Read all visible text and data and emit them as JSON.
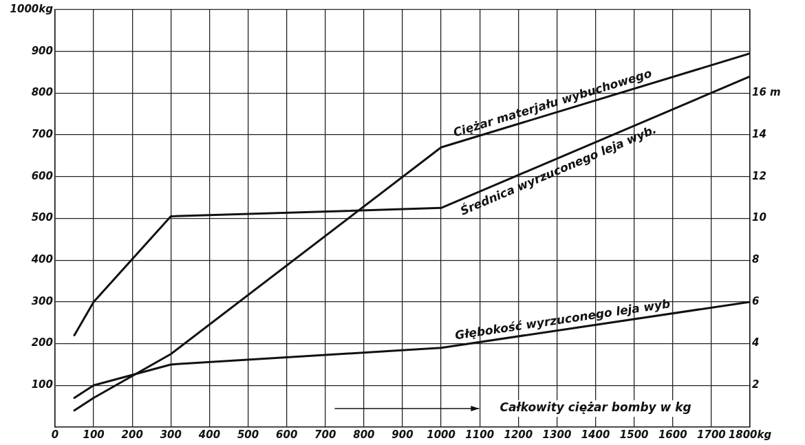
{
  "chart_data": {
    "type": "line",
    "xlabel": "Całkowity ciężar bomby w kg",
    "x": [
      50,
      100,
      300,
      1000,
      1800
    ],
    "series": [
      {
        "name": "Ciężar materjału wybuchowego",
        "color": "#111111",
        "values": [
          40,
          70,
          175,
          670,
          895
        ]
      },
      {
        "name": "Średnica wyrzuconego leja wyb.",
        "color": "#111111",
        "axis": "y2",
        "values": [
          4.4,
          6.0,
          10.1,
          10.5,
          16.8
        ]
      },
      {
        "name": "Głębokość wyrzuconego leja wyb",
        "color": "#111111",
        "axis": "y2",
        "values": [
          1.4,
          2.0,
          3.0,
          3.8,
          6.0
        ]
      }
    ],
    "xlim": [
      0,
      1800
    ],
    "xticks": [
      {
        "value": 0,
        "label": "0"
      },
      100,
      200,
      300,
      400,
      500,
      600,
      700,
      800,
      900,
      1000,
      1100,
      1200,
      1300,
      1400,
      1500,
      1600,
      1700,
      {
        "value": 1800,
        "label": "1800kg"
      }
    ],
    "ylim": [
      0,
      1000
    ],
    "yticks": [
      100,
      200,
      300,
      400,
      500,
      600,
      700,
      800,
      900,
      {
        "value": 1000,
        "label": "1000kg"
      }
    ],
    "y2lim": [
      0,
      20
    ],
    "y2ticks": [
      2,
      4,
      6,
      8,
      10,
      12,
      14,
      {
        "value": 16,
        "label": "16 m"
      }
    ],
    "grid": true,
    "legend": false,
    "marker": "none",
    "line_style": "solid"
  }
}
